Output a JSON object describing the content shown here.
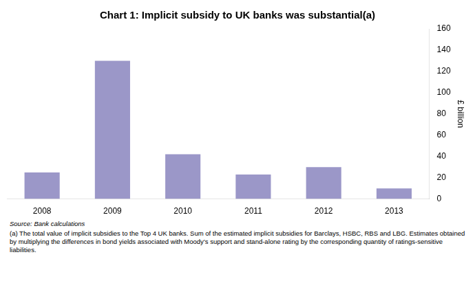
{
  "chart_data": {
    "type": "bar",
    "title": "Chart 1: Implicit subsidy to UK banks was substantial(a)",
    "ylabel": "£ billion",
    "categories": [
      "2008",
      "2009",
      "2010",
      "2011",
      "2012",
      "2013"
    ],
    "values": [
      25,
      130,
      42,
      23,
      30,
      10
    ],
    "color": "#9b97c8",
    "ylim": [
      0,
      160
    ],
    "yticks": [
      0,
      20,
      40,
      60,
      80,
      100,
      120,
      140,
      160
    ],
    "grid": false,
    "annotations": [
      "Source: Bank calculations",
      "(a) The total value of implicit subsidies to the Top 4 UK banks. Sum of the estimated implicit subsidies for Barclays, HSBC, RBS and LBG. Estimates obtained by multiplying the differences in bond yields associated with Moody’s support and stand-alone rating by the corresponding quantity of ratings-sensitive liabilities."
    ]
  }
}
